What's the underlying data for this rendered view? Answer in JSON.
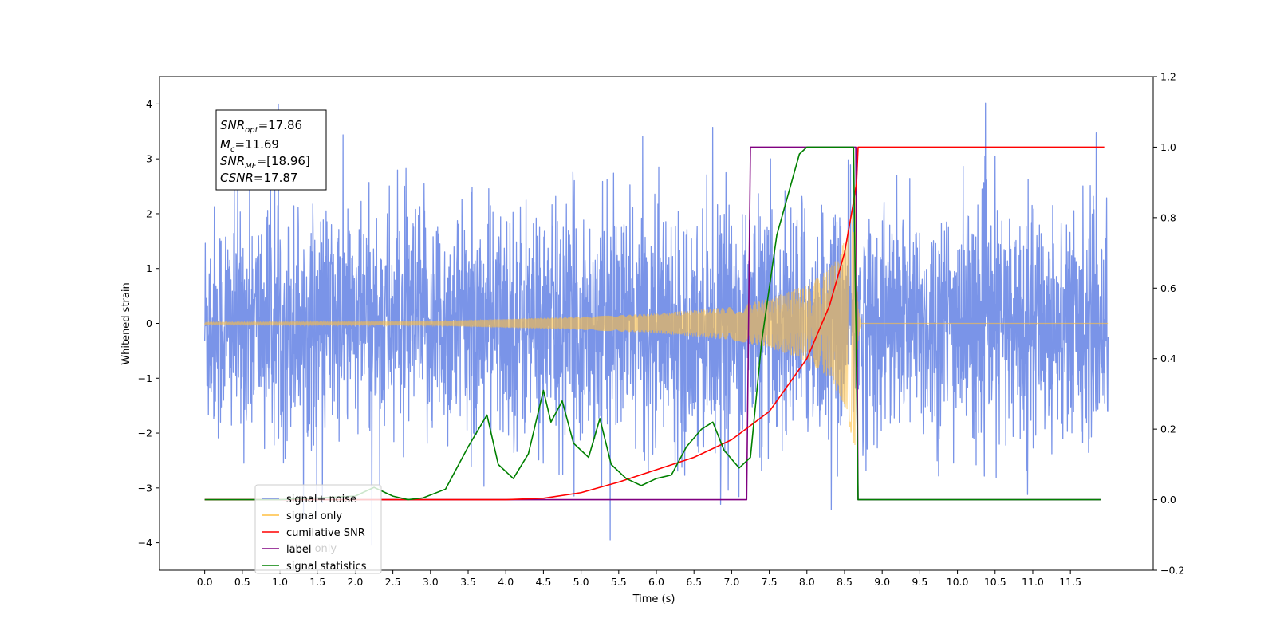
{
  "chart_data": {
    "type": "line",
    "xlabel": "Time (s)",
    "ylabel": "Whitened strain",
    "ylim": [
      -4.5,
      4.5
    ],
    "y2lim": [
      -0.2,
      1.2
    ],
    "xlim": [
      -0.6,
      12.6
    ],
    "x_ticks": [
      0.0,
      0.5,
      1.0,
      1.5,
      2.0,
      2.5,
      3.0,
      3.5,
      4.0,
      4.5,
      5.0,
      5.5,
      6.0,
      6.5,
      7.0,
      7.5,
      8.0,
      8.5,
      9.0,
      9.5,
      10.0,
      10.5,
      11.0,
      11.5
    ],
    "x_tick_labels": [
      "0.0",
      "0.5",
      "1.0",
      "1.5",
      "2.0",
      "2.5",
      "3.0",
      "3.5",
      "4.0",
      "4.5",
      "5.0",
      "5.5",
      "6.0",
      "6.5",
      "7.0",
      "7.5",
      "8.0",
      "8.5",
      "9.0",
      "9.5",
      "10.0",
      "10.5",
      "11.0",
      "11.5"
    ],
    "y_ticks": [
      -4,
      -3,
      -2,
      -1,
      0,
      1,
      2,
      3,
      4
    ],
    "y_tick_labels": [
      "−4",
      "−3",
      "−2",
      "−1",
      "0",
      "1",
      "2",
      "3",
      "4"
    ],
    "y2_ticks": [
      -0.2,
      0.0,
      0.2,
      0.4,
      0.6,
      0.8,
      1.0,
      1.2
    ],
    "y2_tick_labels": [
      "−0.2",
      "0.0",
      "0.2",
      "0.4",
      "0.6",
      "0.8",
      "1.0",
      "1.2"
    ],
    "grid": false,
    "legend_position": "lower-left",
    "annotation": {
      "snr_opt": "=17.86",
      "mc": "=11.69",
      "snr_mf": "=[18.96]",
      "csnr": "=17.87"
    },
    "series": [
      {
        "name": "signal+ noise",
        "axis": "left",
        "color": "#7a94e8",
        "description_values": "noise envelope roughly ±2.5 with spikes to about ±3.5–4.1 across 0–12 s"
      },
      {
        "name": "signal only",
        "axis": "left",
        "color": "#ffbf40",
        "envelope_points": [
          [
            0.0,
            0.02
          ],
          [
            3.0,
            0.04
          ],
          [
            5.0,
            0.12
          ],
          [
            6.0,
            0.18
          ],
          [
            7.0,
            0.3
          ],
          [
            7.5,
            0.45
          ],
          [
            8.0,
            0.7
          ],
          [
            8.3,
            1.0
          ],
          [
            8.5,
            1.5
          ],
          [
            8.62,
            2.2
          ],
          [
            8.65,
            2.6
          ]
        ],
        "after_merger": 0.0
      },
      {
        "name": "cumilative SNR",
        "axis": "right",
        "color": "#ff0000",
        "points": [
          [
            0.0,
            0.0
          ],
          [
            4.0,
            0.0
          ],
          [
            4.5,
            0.004
          ],
          [
            5.0,
            0.02
          ],
          [
            5.5,
            0.05
          ],
          [
            6.0,
            0.085
          ],
          [
            6.5,
            0.12
          ],
          [
            7.0,
            0.17
          ],
          [
            7.5,
            0.25
          ],
          [
            8.0,
            0.4
          ],
          [
            8.3,
            0.55
          ],
          [
            8.5,
            0.7
          ],
          [
            8.6,
            0.82
          ],
          [
            8.66,
            0.9
          ],
          [
            8.68,
            1.0
          ],
          [
            11.95,
            1.0
          ]
        ]
      },
      {
        "name": "label",
        "axis": "right",
        "color": "#800080",
        "points": [
          [
            0.0,
            0.0
          ],
          [
            7.2,
            0.0
          ],
          [
            7.25,
            1.0
          ],
          [
            8.65,
            1.0
          ],
          [
            8.68,
            0.0
          ],
          [
            11.9,
            0.0
          ]
        ]
      },
      {
        "name": "signal statistics",
        "axis": "right",
        "color": "#008000",
        "points": [
          [
            0.0,
            0.0
          ],
          [
            1.0,
            0.0
          ],
          [
            2.0,
            0.01
          ],
          [
            2.25,
            0.035
          ],
          [
            2.5,
            0.01
          ],
          [
            2.7,
            0.0
          ],
          [
            2.9,
            0.005
          ],
          [
            3.2,
            0.03
          ],
          [
            3.5,
            0.15
          ],
          [
            3.75,
            0.24
          ],
          [
            3.9,
            0.1
          ],
          [
            4.1,
            0.06
          ],
          [
            4.3,
            0.13
          ],
          [
            4.5,
            0.31
          ],
          [
            4.6,
            0.22
          ],
          [
            4.75,
            0.28
          ],
          [
            4.9,
            0.16
          ],
          [
            5.1,
            0.12
          ],
          [
            5.25,
            0.23
          ],
          [
            5.4,
            0.1
          ],
          [
            5.6,
            0.06
          ],
          [
            5.8,
            0.04
          ],
          [
            6.0,
            0.06
          ],
          [
            6.2,
            0.07
          ],
          [
            6.4,
            0.15
          ],
          [
            6.6,
            0.2
          ],
          [
            6.75,
            0.22
          ],
          [
            6.9,
            0.14
          ],
          [
            7.1,
            0.09
          ],
          [
            7.25,
            0.12
          ],
          [
            7.4,
            0.45
          ],
          [
            7.6,
            0.75
          ],
          [
            7.9,
            0.98
          ],
          [
            8.0,
            1.0
          ],
          [
            8.62,
            1.0
          ],
          [
            8.68,
            0.0
          ],
          [
            11.9,
            0.0
          ]
        ]
      }
    ],
    "legend": [
      {
        "label": "signal+ noise",
        "color": "#7a94e8"
      },
      {
        "label": "signal only",
        "color": "#ffbf40"
      },
      {
        "label": "cumilative SNR",
        "color": "#ff0000"
      },
      {
        "label": "label",
        "color": "#800080"
      },
      {
        "label": "signal statistics",
        "color": "#008000"
      }
    ],
    "hidden_legend_text": "label only"
  }
}
